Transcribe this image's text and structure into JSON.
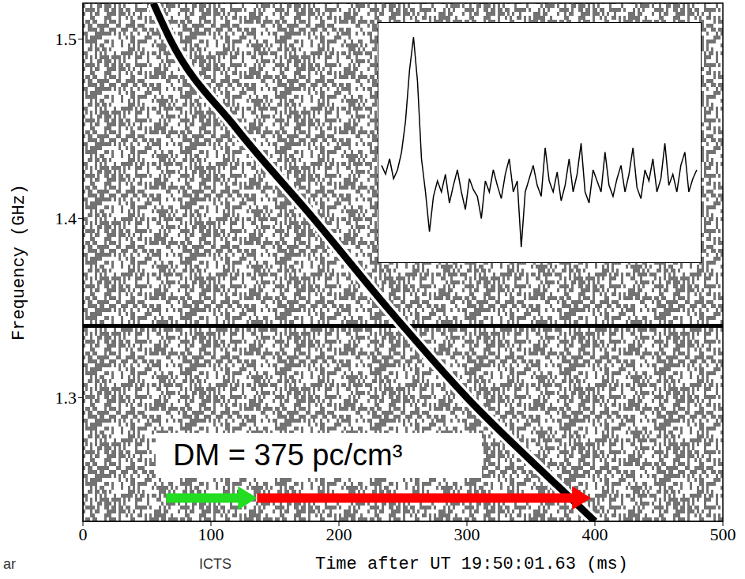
{
  "chart_data": [
    {
      "type": "line",
      "x_label": "Time after UT 19:50:01.63 (ms)",
      "y_label": "Frequency (GHz)",
      "xlim": [
        0,
        500
      ],
      "ylim": [
        1.231,
        1.52
      ],
      "xticks": [
        0,
        100,
        200,
        300,
        400,
        500
      ],
      "yticks": [
        1.3,
        1.4,
        1.5
      ],
      "grid": false,
      "x": [
        55,
        68,
        120,
        180,
        238,
        300,
        372,
        400
      ],
      "series": [
        {
          "color": "#000000",
          "values": [
            1.52,
            1.5,
            1.45,
            1.4,
            1.35,
            1.3,
            1.25,
            1.231
          ]
        }
      ],
      "reference_lines": [
        {
          "y": 1.34,
          "color": "#000000"
        }
      ],
      "arrows": [
        {
          "x": [
            65,
            136
          ],
          "y": 1.244,
          "color": "#22dd22"
        },
        {
          "x": [
            136,
            397
          ],
          "y": 1.244,
          "color": "#ff0000"
        }
      ],
      "annotations": [
        {
          "text": "DM = 375 pc/cm³"
        },
        {
          "text": "ICTS"
        },
        {
          "text": "ar"
        }
      ]
    },
    {
      "type": "line",
      "tick_labels": false,
      "ylim": [
        0,
        1.05
      ],
      "series": [
        {
          "color": "#000000",
          "values": [
            0.42,
            0.38,
            0.45,
            0.36,
            0.4,
            0.48,
            0.62,
            0.85,
            1.0,
            0.8,
            0.45,
            0.3,
            0.12,
            0.28,
            0.35,
            0.3,
            0.38,
            0.25,
            0.33,
            0.4,
            0.3,
            0.22,
            0.36,
            0.31,
            0.28,
            0.18,
            0.35,
            0.3,
            0.4,
            0.33,
            0.27,
            0.38,
            0.45,
            0.3,
            0.35,
            0.05,
            0.3,
            0.36,
            0.42,
            0.33,
            0.28,
            0.5,
            0.35,
            0.3,
            0.39,
            0.26,
            0.33,
            0.45,
            0.3,
            0.38,
            0.52,
            0.3,
            0.25,
            0.4,
            0.35,
            0.3,
            0.48,
            0.33,
            0.28,
            0.36,
            0.42,
            0.3,
            0.38,
            0.5,
            0.32,
            0.27,
            0.4,
            0.35,
            0.45,
            0.3,
            0.36,
            0.52,
            0.33,
            0.38,
            0.3,
            0.42,
            0.48,
            0.3,
            0.36,
            0.4
          ]
        }
      ]
    }
  ]
}
